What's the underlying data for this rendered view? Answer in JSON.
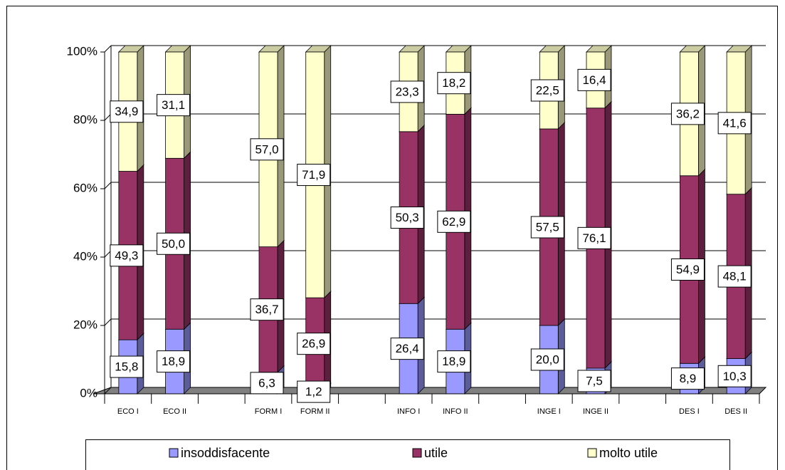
{
  "chart_data": {
    "type": "bar",
    "stacked": true,
    "categories": [
      "ECO I",
      "ECO II",
      null,
      "FORM I",
      "FORM II",
      null,
      "INFO I",
      "INFO II",
      null,
      "INGE I",
      "INGE II",
      null,
      "DES I",
      "DES II"
    ],
    "series": [
      {
        "name": "insoddisfacente",
        "color": "#9999ff",
        "values": [
          15.8,
          18.9,
          null,
          6.3,
          1.2,
          null,
          26.4,
          18.9,
          null,
          20.0,
          7.5,
          null,
          8.9,
          10.3
        ],
        "value_labels": [
          "15,8",
          "18,9",
          null,
          "6,3",
          "1,2",
          null,
          "26,4",
          "18,9",
          null,
          "20,0",
          "7,5",
          null,
          "8,9",
          "10,3"
        ]
      },
      {
        "name": "utile",
        "color": "#993366",
        "values": [
          49.3,
          50.0,
          null,
          36.7,
          26.9,
          null,
          50.3,
          62.9,
          null,
          57.5,
          76.1,
          null,
          54.9,
          48.1
        ],
        "value_labels": [
          "49,3",
          "50,0",
          null,
          "36,7",
          "26,9",
          null,
          "50,3",
          "62,9",
          null,
          "57,5",
          "76,1",
          null,
          "54,9",
          "48,1"
        ]
      },
      {
        "name": "molto utile",
        "color": "#ffffcc",
        "values": [
          34.9,
          31.1,
          null,
          57.0,
          71.9,
          null,
          23.3,
          18.2,
          null,
          22.5,
          16.4,
          null,
          36.2,
          41.6
        ],
        "value_labels": [
          "34,9",
          "31,1",
          null,
          "57,0",
          "71,9",
          null,
          "23,3",
          "18,2",
          null,
          "22,5",
          "16,4",
          null,
          "36,2",
          "41,6"
        ]
      }
    ],
    "ylim": [
      0,
      100
    ],
    "yticks": [
      {
        "value": 0,
        "label": "0%"
      },
      {
        "value": 20,
        "label": "20%"
      },
      {
        "value": 40,
        "label": "40%"
      },
      {
        "value": 60,
        "label": "60%"
      },
      {
        "value": 80,
        "label": "80%"
      },
      {
        "value": 100,
        "label": "100%"
      }
    ],
    "grid": true,
    "legend": "bottom"
  }
}
